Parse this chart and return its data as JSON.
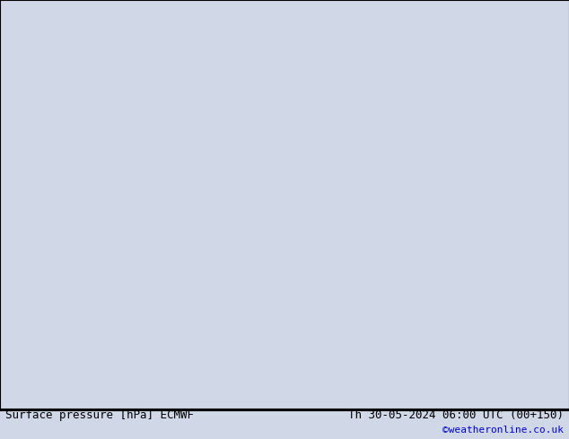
{
  "title_left": "Surface pressure [hPa] ECMWF",
  "title_right": "Th 30-05-2024 06:00 UTC (00+150)",
  "credit": "©weatheronline.co.uk",
  "background_color": "#d0d8e8",
  "land_color": "#aad4a0",
  "land_edge_color": "#888888",
  "blue_contour_color": "#0000cc",
  "red_contour_color": "#cc0000",
  "black_contour_color": "#000000",
  "orange_contour_color": "#ff6600",
  "text_color": "#000000",
  "credit_color": "#0000cc",
  "map_xlim": [
    110,
    185
  ],
  "map_ylim": [
    -55,
    5
  ],
  "figsize": [
    6.34,
    4.9
  ],
  "dpi": 100,
  "font_size_title": 9,
  "font_size_label": 7,
  "font_size_credit": 8
}
